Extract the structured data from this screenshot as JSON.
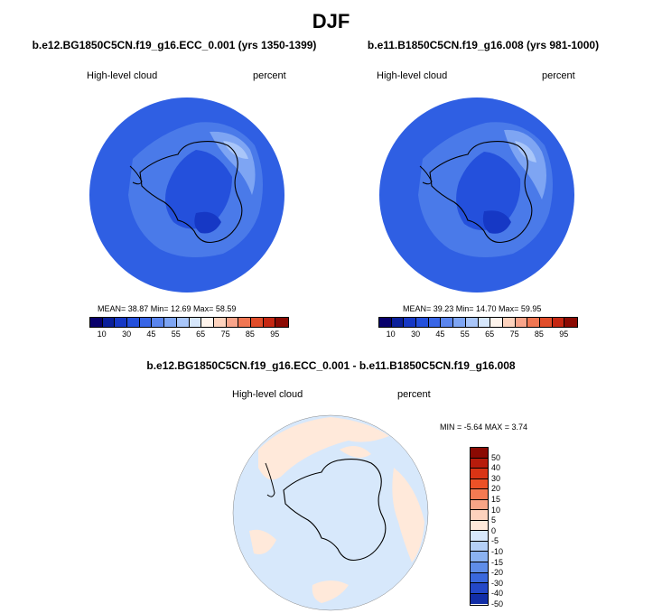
{
  "figure_title": "DJF",
  "panels": [
    {
      "case": "b.e12.BG1850C5CN.f19_g16.ECC_0.001 (yrs 1350-1399)",
      "variable": "High-level cloud",
      "units": "percent",
      "stats": "MEAN=  38.87  Min=  12.69  Max=  58.59"
    },
    {
      "case": "b.e11.B1850C5CN.f19_g16.008 (yrs 981-1000)",
      "variable": "High-level cloud",
      "units": "percent",
      "stats": "MEAN=  39.23  Min=  14.70  Max=  59.95"
    }
  ],
  "diff_panel": {
    "title": "b.e12.BG1850C5CN.f19_g16.ECC_0.001 - b.e11.B1850C5CN.f19_g16.008",
    "variable": "High-level cloud",
    "units": "percent",
    "minmax": "MIN = -5.64 MAX =  3.74"
  },
  "colorbar_main": {
    "colors": [
      "#08006b",
      "#0a1f9a",
      "#1638c5",
      "#2450dc",
      "#3966e6",
      "#5a85ee",
      "#7ea5f3",
      "#a9c6f9",
      "#d6e6fb",
      "#fff4ec",
      "#fdd2bd",
      "#f8a48a",
      "#f07652",
      "#e14d2a",
      "#c52712",
      "#8b0a03"
    ],
    "tick_labels": [
      "10",
      "30",
      "45",
      "55",
      "65",
      "75",
      "85",
      "95"
    ]
  },
  "colorbar_diff": {
    "colors": [
      "#8b0a03",
      "#b71c0c",
      "#d93415",
      "#ec5127",
      "#f47a52",
      "#f8a586",
      "#fdd2bd",
      "#ffe9da",
      "#d7e8fb",
      "#b5d0f7",
      "#8bb2f1",
      "#5f8de8",
      "#3a68dd",
      "#2448c8",
      "#122ea7",
      "#06127e"
    ],
    "tick_labels": [
      "50",
      "40",
      "30",
      "20",
      "15",
      "10",
      "5",
      "0",
      "-5",
      "-10",
      "-15",
      "-20",
      "-30",
      "-40",
      "-50"
    ]
  }
}
